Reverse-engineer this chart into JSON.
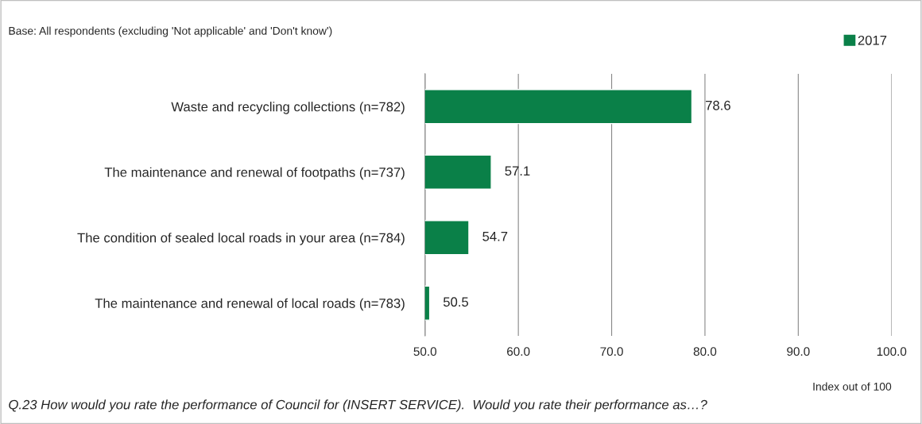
{
  "chart_data": {
    "type": "bar",
    "orientation": "horizontal",
    "categories": [
      "Waste and recycling collections (n=782)",
      "The maintenance and renewal of footpaths (n=737)",
      "The condition of sealed local roads in your area (n=784)",
      "The maintenance and renewal of local roads (n=783)"
    ],
    "series": [
      {
        "name": "2017",
        "color": "#0a8048",
        "values": [
          78.6,
          57.1,
          54.7,
          50.5
        ]
      }
    ],
    "xlim": [
      50,
      100
    ],
    "xticks": [
      {
        "value": 50,
        "label": "50.0"
      },
      {
        "value": 60,
        "label": "60.0"
      },
      {
        "value": 70,
        "label": "70.0"
      },
      {
        "value": 80,
        "label": "80.0"
      },
      {
        "value": 90,
        "label": "90.0"
      },
      {
        "value": 100,
        "label": "100.0"
      }
    ],
    "xlabel": "Index out of 100",
    "grid": "x",
    "legend": "top right",
    "data_labels": true,
    "annotations": [
      "Base: All respondents (excluding 'Not applicable' and 'Don't know')",
      "Q.23 How would you rate the performance of Council for (INSERT SERVICE).  Would you rate their performance as…?"
    ]
  }
}
